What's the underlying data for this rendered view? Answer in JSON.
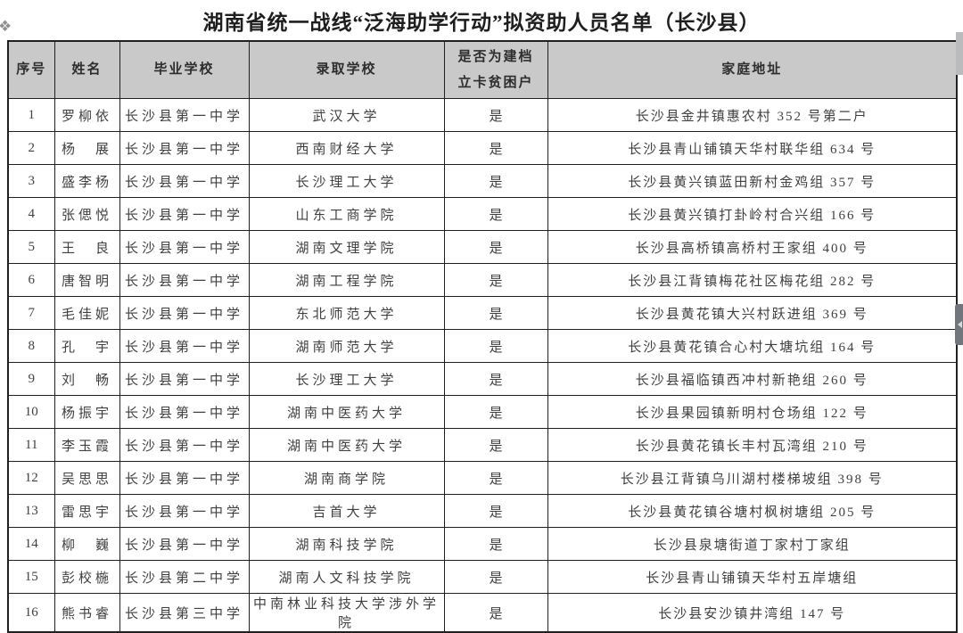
{
  "page": {
    "title": "湖南省统一战线“泛海助学行动”拟资助人员名单（长沙县）"
  },
  "colors": {
    "header_bg": "#c9c9c9",
    "border": "#202020"
  },
  "decorations": {
    "corner_marker": "❖"
  },
  "table": {
    "headers": [
      "序号",
      "姓名",
      "毕业学校",
      "录取学校",
      "是否为建档\n立卡贫困户",
      "家庭地址"
    ],
    "rows": [
      {
        "no": "1",
        "name": "罗柳依",
        "graduate_school": "长沙县第一中学",
        "admitted_school": "武汉大学",
        "poor_household": "是",
        "address": "长沙县金井镇惠农村 352 号第二户"
      },
      {
        "no": "2",
        "name": "杨　展",
        "graduate_school": "长沙县第一中学",
        "admitted_school": "西南财经大学",
        "poor_household": "是",
        "address": "长沙县青山铺镇天华村联华组 634 号"
      },
      {
        "no": "3",
        "name": "盛李杨",
        "graduate_school": "长沙县第一中学",
        "admitted_school": "长沙理工大学",
        "poor_household": "是",
        "address": "长沙县黄兴镇蓝田新村金鸡组 357 号"
      },
      {
        "no": "4",
        "name": "张偲悦",
        "graduate_school": "长沙县第一中学",
        "admitted_school": "山东工商学院",
        "poor_household": "是",
        "address": "长沙县黄兴镇打卦岭村合兴组 166 号"
      },
      {
        "no": "5",
        "name": "王　良",
        "graduate_school": "长沙县第一中学",
        "admitted_school": "湖南文理学院",
        "poor_household": "是",
        "address": "长沙县高桥镇高桥村王家组 400 号"
      },
      {
        "no": "6",
        "name": "唐智明",
        "graduate_school": "长沙县第一中学",
        "admitted_school": "湖南工程学院",
        "poor_household": "是",
        "address": "长沙县江背镇梅花社区梅花组 282 号"
      },
      {
        "no": "7",
        "name": "毛佳妮",
        "graduate_school": "长沙县第一中学",
        "admitted_school": "东北师范大学",
        "poor_household": "是",
        "address": "长沙县黄花镇大兴村跃进组 369 号"
      },
      {
        "no": "8",
        "name": "孔　宇",
        "graduate_school": "长沙县第一中学",
        "admitted_school": "湖南师范大学",
        "poor_household": "是",
        "address": "长沙县黄花镇合心村大塘坑组 164 号"
      },
      {
        "no": "9",
        "name": "刘　畅",
        "graduate_school": "长沙县第一中学",
        "admitted_school": "长沙理工大学",
        "poor_household": "是",
        "address": "长沙县福临镇西冲村新艳组 260 号"
      },
      {
        "no": "10",
        "name": "杨振宇",
        "graduate_school": "长沙县第一中学",
        "admitted_school": "湖南中医药大学",
        "poor_household": "是",
        "address": "长沙县果园镇新明村仓场组 122 号"
      },
      {
        "no": "11",
        "name": "李玉霞",
        "graduate_school": "长沙县第一中学",
        "admitted_school": "湖南中医药大学",
        "poor_household": "是",
        "address": "长沙县黄花镇长丰村瓦湾组 210 号"
      },
      {
        "no": "12",
        "name": "吴思思",
        "graduate_school": "长沙县第一中学",
        "admitted_school": "湖南商学院",
        "poor_household": "是",
        "address": "长沙县江背镇乌川湖村楼梯坡组 398 号"
      },
      {
        "no": "13",
        "name": "雷思宇",
        "graduate_school": "长沙县第一中学",
        "admitted_school": "吉首大学",
        "poor_household": "是",
        "address": "长沙县黄花镇谷塘村枫树塘组 205 号"
      },
      {
        "no": "14",
        "name": "柳　巍",
        "graduate_school": "长沙县第一中学",
        "admitted_school": "湖南科技学院",
        "poor_household": "是",
        "address": "长沙县泉塘街道丁家村丁家组"
      },
      {
        "no": "15",
        "name": "彭校椸",
        "graduate_school": "长沙县第二中学",
        "admitted_school": "湖南人文科技学院",
        "poor_household": "是",
        "address": "长沙县青山铺镇天华村五岸塘组"
      },
      {
        "no": "16",
        "name": "熊书睿",
        "graduate_school": "长沙县第三中学",
        "admitted_school": "中南林业科技大学涉外学院",
        "poor_household": "是",
        "address": "长沙县安沙镇井湾组 147 号"
      }
    ]
  }
}
